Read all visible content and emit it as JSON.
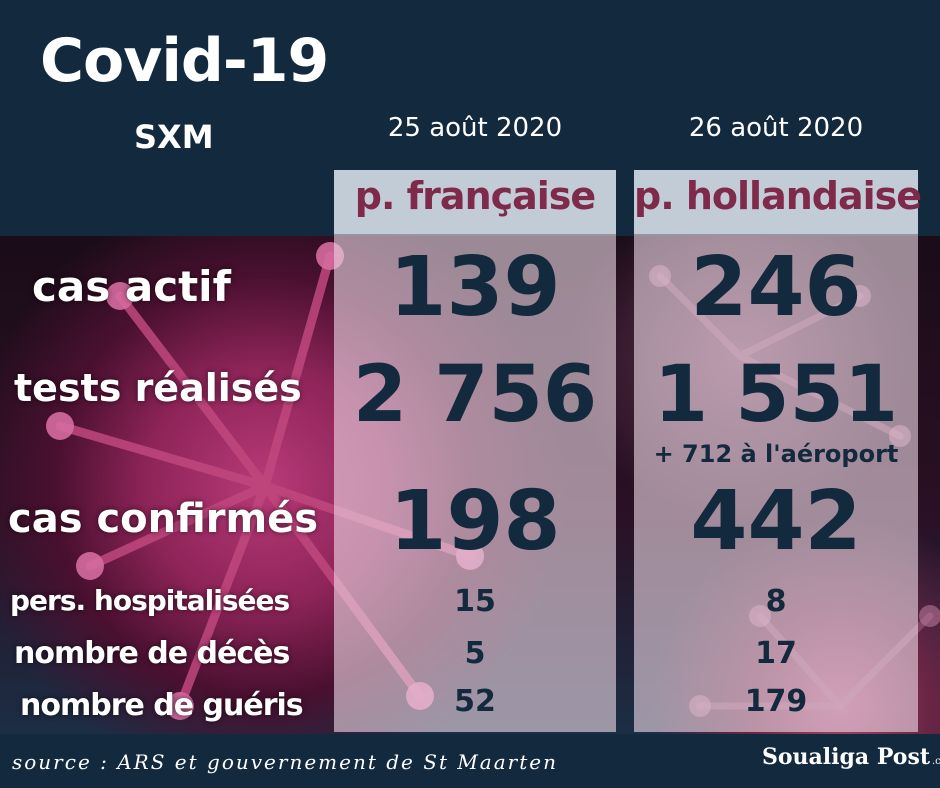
{
  "header": {
    "title": "Covid-19",
    "subtitle": "SXM"
  },
  "columns": [
    {
      "date": "25 août 2020",
      "name": "p. française"
    },
    {
      "date": "26 août 2020",
      "name": "p. hollandaise"
    }
  ],
  "rows": [
    {
      "label": "cas actif",
      "fr": "139",
      "nl": "246"
    },
    {
      "label": "tests réalisés",
      "fr": "2 756",
      "nl": "1 551",
      "nl_note": "+ 712 à l'aéroport"
    },
    {
      "label": "cas confirmés",
      "fr": "198",
      "nl": "442"
    },
    {
      "label": "pers. hospitalisées",
      "fr": "15",
      "nl": "8"
    },
    {
      "label": "nombre de décès",
      "fr": "5",
      "nl": "17"
    },
    {
      "label": "nombre de guéris",
      "fr": "52",
      "nl": "179"
    }
  ],
  "footer": {
    "source": "source : ARS et gouvernement de St Maarten",
    "logo_text": "Soualiga Post",
    "logo_suffix": ".com"
  },
  "colors": {
    "navy": "#13293d",
    "column_name": "#7f2a4a",
    "value_text": "#13293d"
  }
}
